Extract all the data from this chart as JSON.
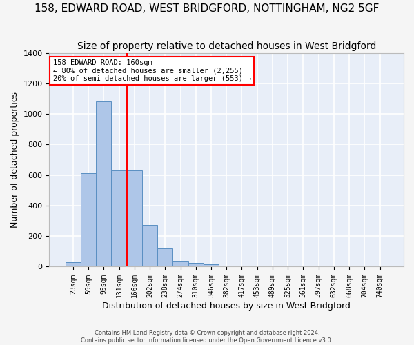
{
  "title": "158, EDWARD ROAD, WEST BRIDGFORD, NOTTINGHAM, NG2 5GF",
  "subtitle": "Size of property relative to detached houses in West Bridgford",
  "xlabel": "Distribution of detached houses by size in West Bridgford",
  "ylabel": "Number of detached properties",
  "footer_line1": "Contains HM Land Registry data © Crown copyright and database right 2024.",
  "footer_line2": "Contains public sector information licensed under the Open Government Licence v3.0.",
  "bin_labels": [
    "23sqm",
    "59sqm",
    "95sqm",
    "131sqm",
    "166sqm",
    "202sqm",
    "238sqm",
    "274sqm",
    "310sqm",
    "346sqm",
    "382sqm",
    "417sqm",
    "453sqm",
    "489sqm",
    "525sqm",
    "561sqm",
    "597sqm",
    "632sqm",
    "668sqm",
    "704sqm",
    "740sqm"
  ],
  "bar_values": [
    30,
    610,
    1080,
    630,
    630,
    275,
    120,
    40,
    25,
    15,
    0,
    0,
    0,
    0,
    0,
    0,
    0,
    0,
    0,
    0,
    0
  ],
  "bar_color": "#aec6e8",
  "bar_edge_color": "#5a8fc2",
  "red_line_bin": 4,
  "annotation_line1": "158 EDWARD ROAD: 160sqm",
  "annotation_line2": "← 80% of detached houses are smaller (2,255)",
  "annotation_line3": "20% of semi-detached houses are larger (553) →",
  "ylim": [
    0,
    1400
  ],
  "yticks": [
    0,
    200,
    400,
    600,
    800,
    1000,
    1200,
    1400
  ],
  "background_color": "#e8eef8",
  "grid_color": "#ffffff",
  "title_fontsize": 11,
  "subtitle_fontsize": 10,
  "xlabel_fontsize": 9,
  "ylabel_fontsize": 9
}
